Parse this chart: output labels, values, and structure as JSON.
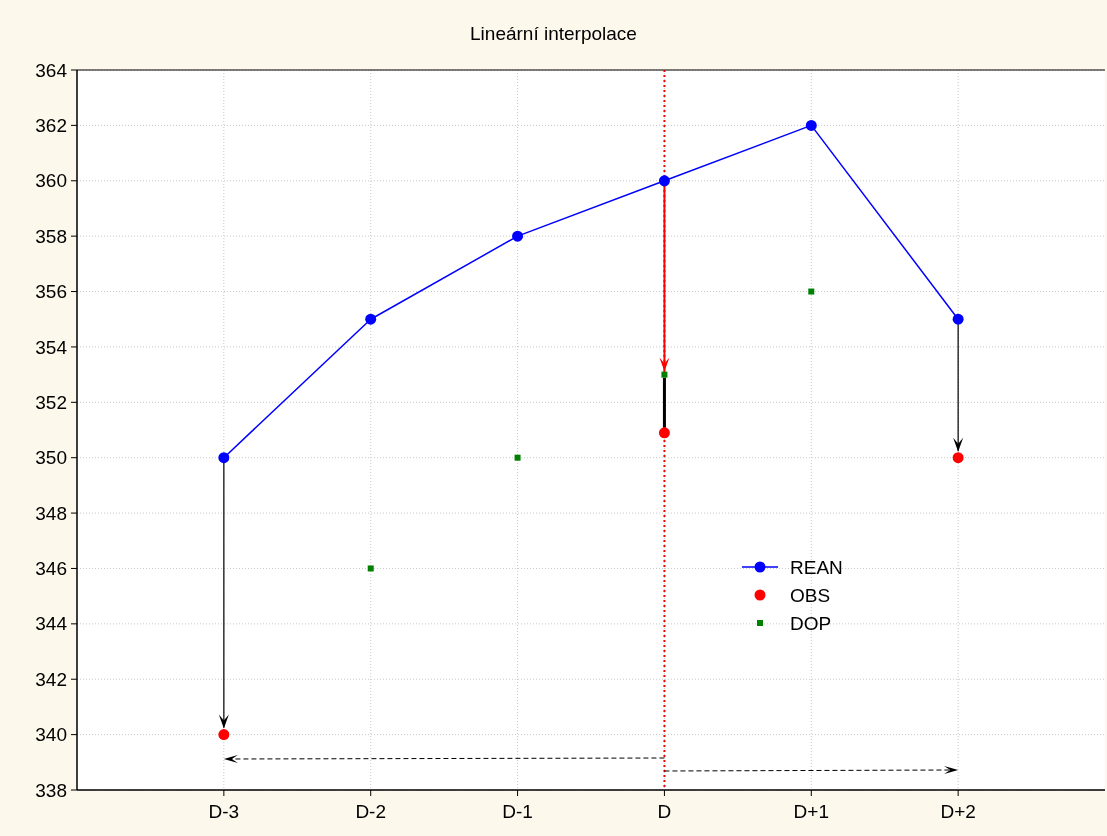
{
  "chart_data": {
    "type": "line",
    "title": "Lineární interpolace",
    "categories": [
      "D-3",
      "D-2",
      "D-1",
      "D",
      "D+1",
      "D+2"
    ],
    "ylim": [
      338,
      364
    ],
    "yticks": [
      338,
      340,
      342,
      344,
      346,
      348,
      350,
      352,
      354,
      356,
      358,
      360,
      362,
      364
    ],
    "grid": true,
    "legend": "right",
    "series": [
      {
        "name": "REAN",
        "color": "#0000ff",
        "marker": "circle",
        "values": [
          350,
          355,
          358,
          360,
          362,
          355
        ]
      },
      {
        "name": "OBS",
        "type": "scatter",
        "color": "#ff0000",
        "marker": "circle",
        "values": [
          340,
          null,
          null,
          350.9,
          null,
          350
        ]
      },
      {
        "name": "DOP",
        "type": "scatter",
        "color": "#008000",
        "marker": "square",
        "values": [
          null,
          346,
          350,
          353,
          356,
          null
        ]
      }
    ],
    "ref_lines": [
      {
        "axis": "x",
        "value": "D",
        "color": "#ff0000",
        "line_style": "dotted"
      }
    ]
  }
}
